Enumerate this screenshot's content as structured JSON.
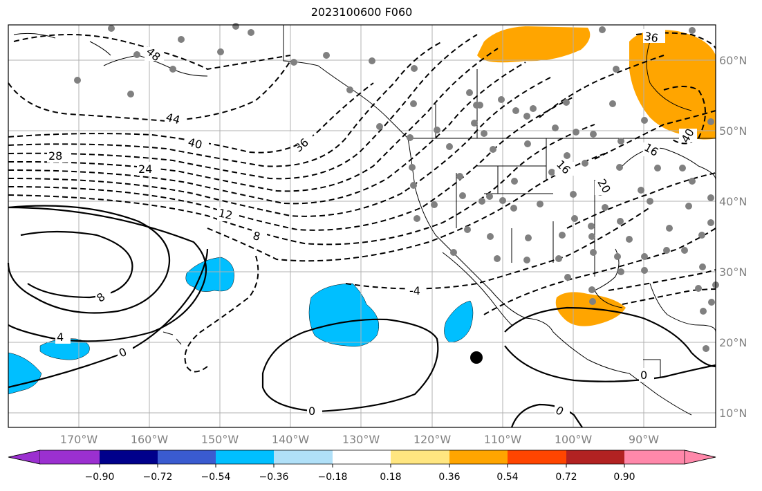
{
  "title": "2023100600 F060",
  "map": {
    "lon_labels": [
      "170°W",
      "160°W",
      "150°W",
      "140°W",
      "130°W",
      "120°W",
      "110°W",
      "100°W",
      "90°W"
    ],
    "lat_labels": [
      "60°N",
      "50°N",
      "40°N",
      "30°N",
      "20°N",
      "10°N"
    ],
    "contour_labels": [
      "48",
      "44",
      "40",
      "36",
      "28",
      "24",
      "12",
      "8",
      "-4",
      "36",
      "16",
      "20",
      "8",
      "4",
      "0",
      "0",
      "0",
      "0",
      "40",
      "16"
    ],
    "marker": "black-dot"
  },
  "colorbar": {
    "ticks": [
      "−0.90",
      "−0.72",
      "−0.54",
      "−0.36",
      "−0.18",
      "0.18",
      "0.36",
      "0.54",
      "0.72",
      "0.90"
    ],
    "colors": [
      "#9b30d0",
      "#00008b",
      "#3a5bd0",
      "#00bfff",
      "#b0e0f8",
      "#ffffff",
      "#ffe680",
      "#ffa500",
      "#ff4500",
      "#b22222",
      "#ff88aa"
    ]
  },
  "colors": {
    "positive_fill": "#ffa500",
    "negative_fill": "#00bfff",
    "station_dot": "#808080",
    "grid": "#b0b0b0"
  }
}
